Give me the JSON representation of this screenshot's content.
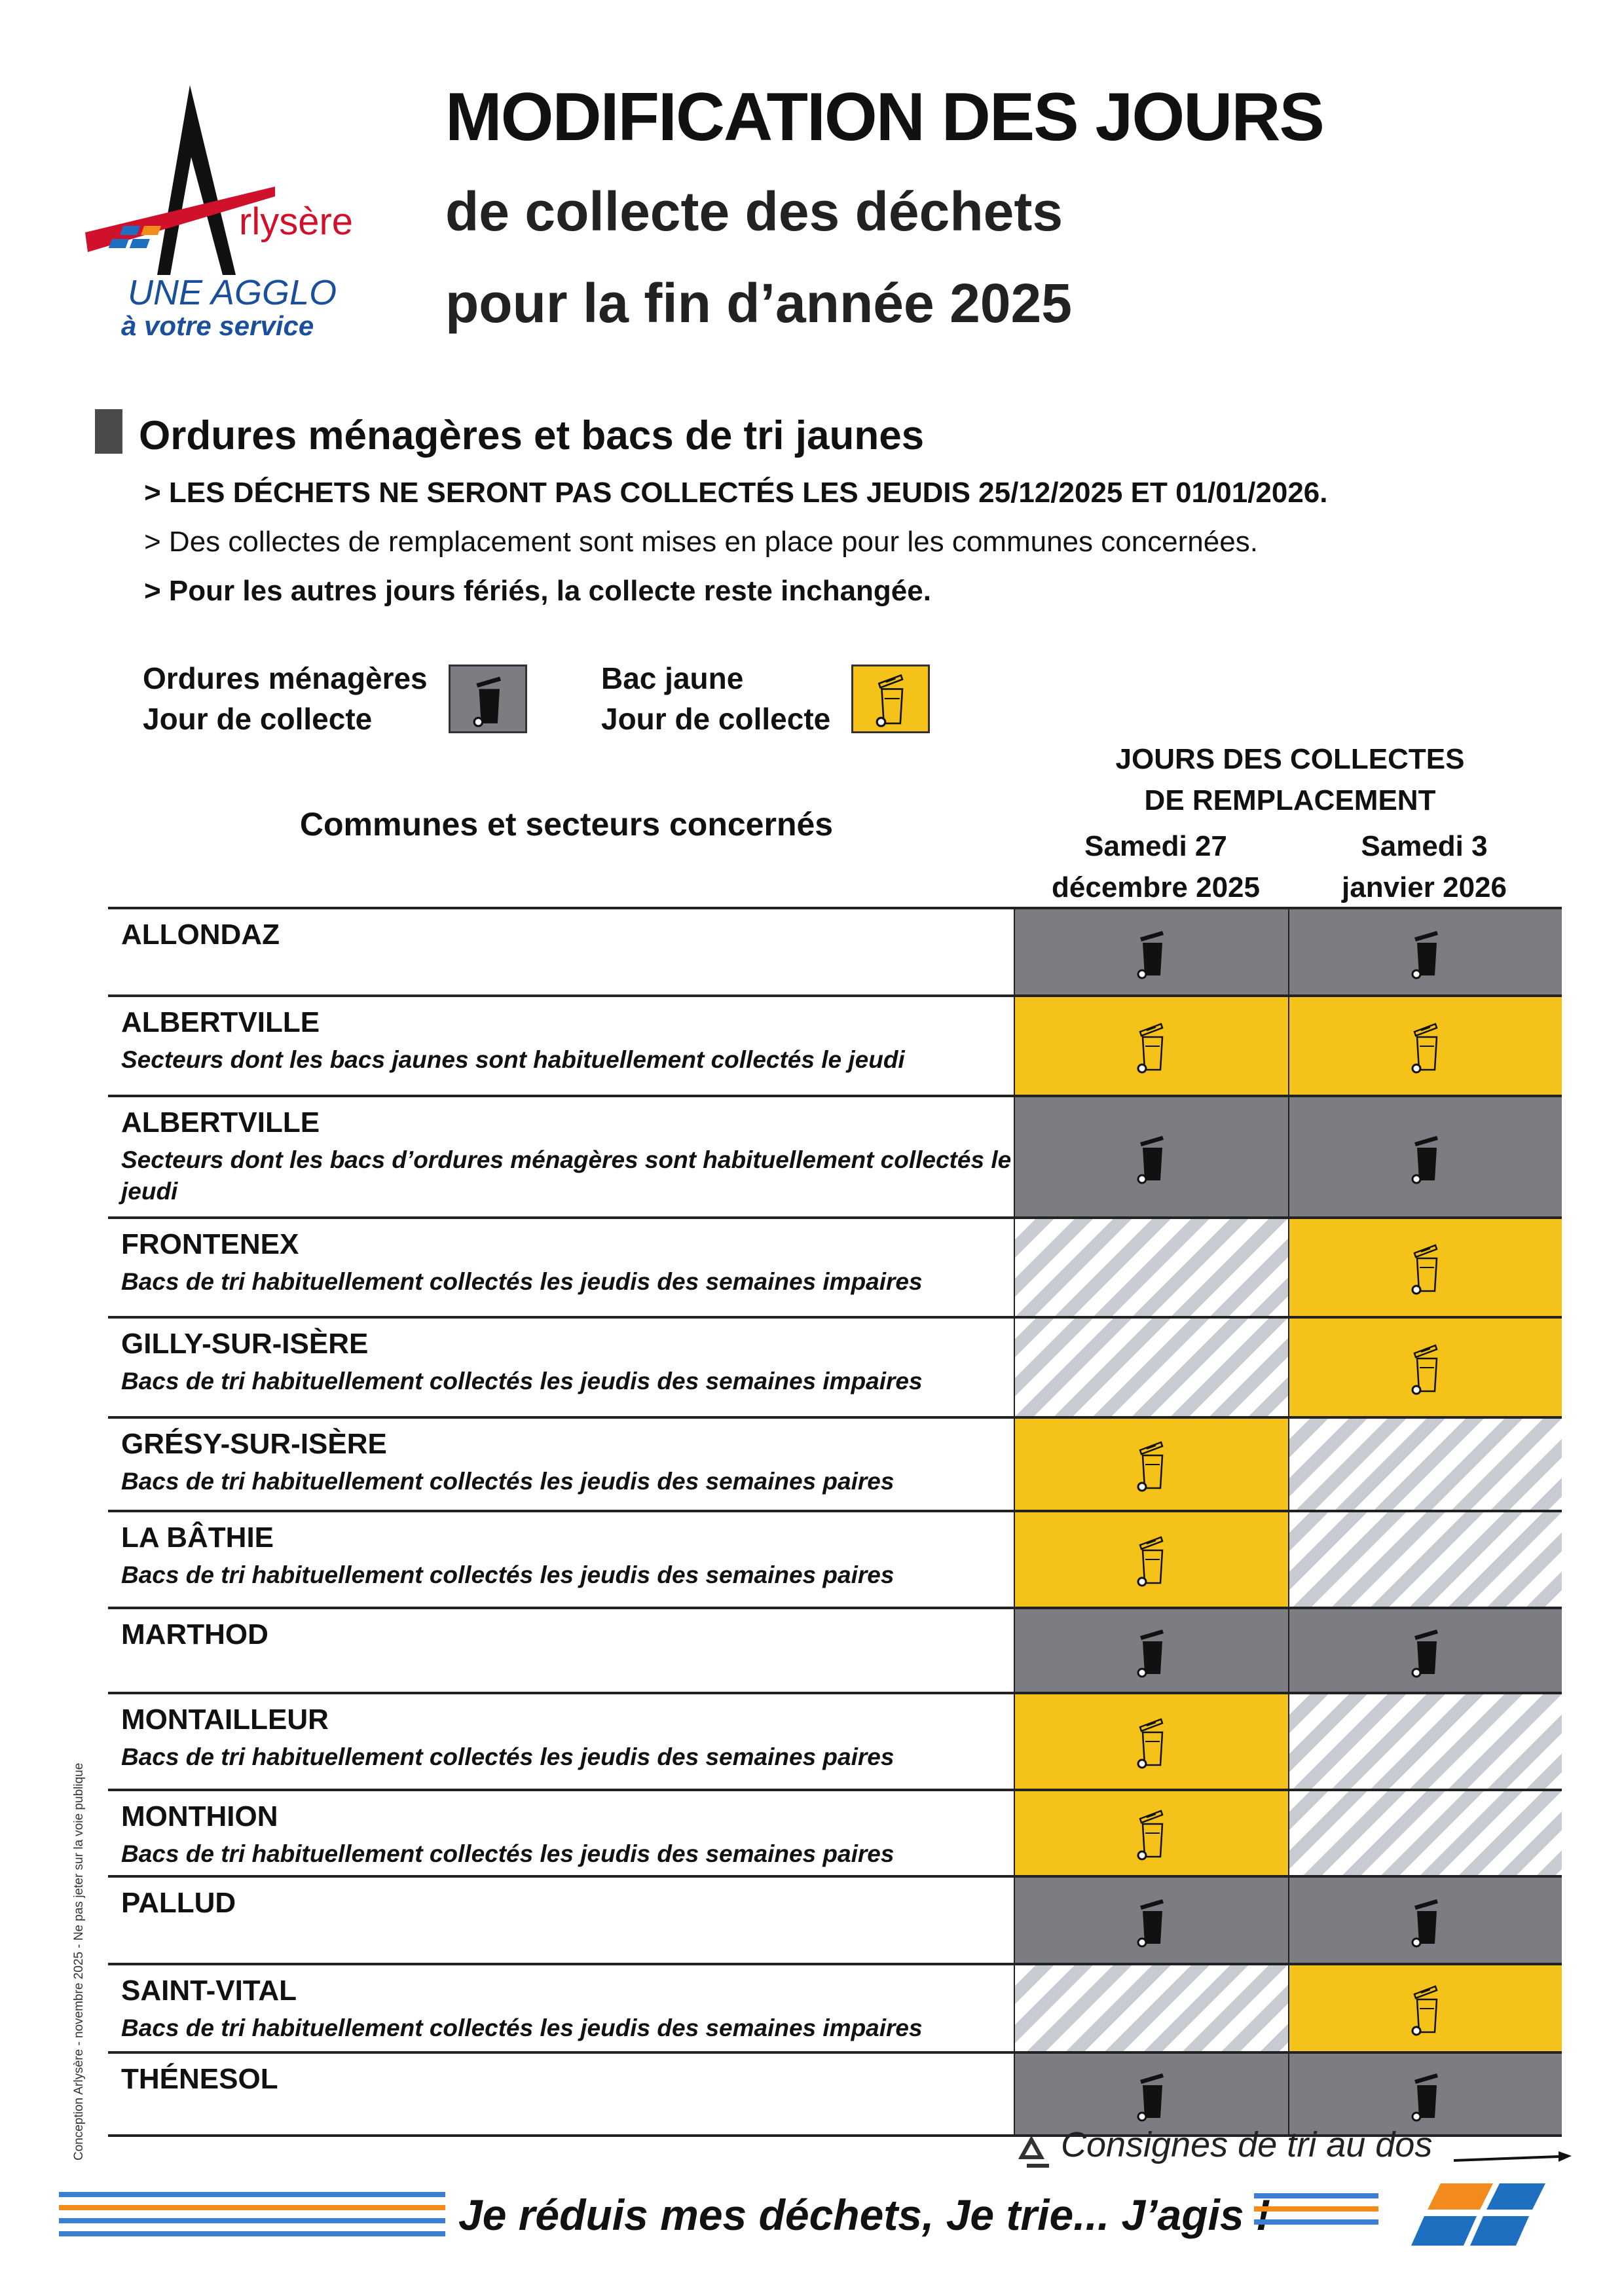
{
  "logo": {
    "brand": "rlysère",
    "tagline1": "UNE AGGLO",
    "tagline2": "à votre service"
  },
  "header": {
    "title": "MODIFICATION DES JOURS",
    "subtitle1": "de collecte des déchets",
    "subtitle2": "pour la fin d’année 2025"
  },
  "section": {
    "heading": "Ordures ménagères et bacs de tri jaunes",
    "notes": [
      "> LES DÉCHETS NE SERONT PAS COLLECTÉS LES JEUDIS 25/12/2025 ET 01/01/2026.",
      "> Des collectes de remplacement sont mises en place pour les communes concernées.",
      "> Pour les autres jours fériés, la collecte reste inchangée."
    ]
  },
  "legend": [
    {
      "line1": "Ordures ménagères",
      "line2": "Jour de collecte",
      "kind": "gray"
    },
    {
      "line1": "Bac jaune",
      "line2": "Jour de collecte",
      "kind": "yellow"
    }
  ],
  "table": {
    "communes_header": "Communes et secteurs concernés",
    "group_header": [
      "JOURS DES COLLECTES",
      "DE REMPLACEMENT"
    ],
    "columns": [
      [
        "Samedi 27",
        "décembre 2025"
      ],
      [
        "Samedi 3",
        "janvier 2026"
      ]
    ],
    "rows": [
      {
        "name": "ALLONDAZ",
        "cells": [
          "gray",
          "gray"
        ]
      },
      {
        "name": "ALBERTVILLE",
        "detail": "Secteurs dont les bacs jaunes sont habituellement collectés le jeudi",
        "cells": [
          "yellow",
          "yellow"
        ]
      },
      {
        "name": "ALBERTVILLE",
        "detail": "Secteurs dont les bacs d’ordures ménagères sont habituellement collectés le jeudi",
        "cells": [
          "gray",
          "gray"
        ]
      },
      {
        "name": "FRONTENEX",
        "detail": "Bacs de tri habituellement collectés les jeudis des semaines impaires",
        "cells": [
          "none",
          "yellow"
        ]
      },
      {
        "name": "GILLY-SUR-ISÈRE",
        "detail": "Bacs de tri habituellement collectés les jeudis des semaines impaires",
        "cells": [
          "none",
          "yellow"
        ]
      },
      {
        "name": "GRÉSY-SUR-ISÈRE",
        "detail": "Bacs de tri habituellement collectés les jeudis des semaines paires",
        "cells": [
          "yellow",
          "none"
        ]
      },
      {
        "name": "LA BÂTHIE",
        "detail": "Bacs de tri habituellement collectés les jeudis des semaines paires",
        "cells": [
          "yellow",
          "none"
        ]
      },
      {
        "name": "MARTHOD",
        "cells": [
          "gray",
          "gray"
        ]
      },
      {
        "name": "MONTAILLEUR",
        "detail": "Bacs de tri habituellement collectés les jeudis des semaines paires",
        "cells": [
          "yellow",
          "none"
        ]
      },
      {
        "name": "MONTHION",
        "detail": "Bacs de tri habituellement collectés les jeudis des semaines paires",
        "cells": [
          "yellow",
          "none"
        ]
      },
      {
        "name": "PALLUD",
        "cells": [
          "gray",
          "gray"
        ]
      },
      {
        "name": "SAINT-VITAL",
        "detail": "Bacs de tri habituellement collectés les jeudis des semaines impaires",
        "cells": [
          "none",
          "yellow"
        ]
      },
      {
        "name": "THÉNESOL",
        "cells": [
          "gray",
          "gray"
        ]
      }
    ]
  },
  "footer": {
    "consignes": "Consignes de tri au dos",
    "slogan": "Je réduis mes déchets, Je trie... J’agis !",
    "side_note": "Conception Arlysère - novembre 2025 - Ne pas jeter sur la voie publique"
  }
}
